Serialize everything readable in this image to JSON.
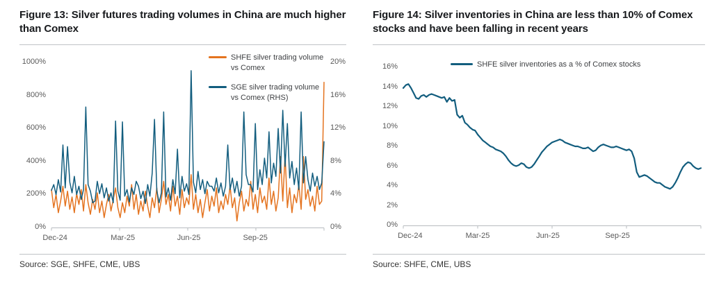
{
  "figure13": {
    "title": "Figure 13: Silver futures trading volumes in China are much higher than Comex",
    "source": "Source: SGE, SHFE, CME, UBS",
    "chart_data": {
      "type": "line",
      "x_ticks": [
        "Dec-24",
        "Mar-25",
        "Jun-25",
        "Sep-25"
      ],
      "x_range": [
        "Dec-24",
        "Nov-25"
      ],
      "grid": "off",
      "legend_position": "top-right-inside",
      "left_axis": {
        "ticks": [
          "0%",
          "200%",
          "400%",
          "600%",
          "800%",
          "1000%"
        ],
        "min": 0,
        "max": 1000
      },
      "right_axis": {
        "ticks": [
          "0%",
          "4%",
          "8%",
          "12%",
          "16%",
          "20%"
        ],
        "min": 0,
        "max": 20
      },
      "series": [
        {
          "name": "SHFE silver trading volume vs Comex",
          "axis": "left",
          "color": "#E4731F",
          "unit": "%",
          "values": [
            230,
            120,
            200,
            90,
            160,
            250,
            130,
            220,
            110,
            185,
            90,
            205,
            140,
            230,
            100,
            260,
            150,
            80,
            170,
            110,
            210,
            90,
            160,
            60,
            140,
            200,
            100,
            170,
            240,
            120,
            60,
            150,
            90,
            190,
            130,
            260,
            110,
            200,
            80,
            160,
            100,
            220,
            130,
            60,
            180,
            120,
            240,
            90,
            170,
            280,
            140,
            200,
            100,
            250,
            130,
            190,
            80,
            230,
            120,
            180,
            140,
            320,
            110,
            200,
            90,
            170,
            60,
            150,
            230,
            100,
            190,
            130,
            240,
            90,
            160,
            110,
            200,
            140,
            250,
            120,
            180,
            40,
            150,
            220,
            100,
            170,
            130,
            280,
            110,
            200,
            90,
            240,
            150,
            190,
            110,
            300,
            140,
            220,
            100,
            180,
            430,
            160,
            440,
            120,
            240,
            90,
            200,
            150,
            260,
            110,
            430,
            170,
            230,
            130,
            190,
            100,
            250,
            140,
            160,
            880
          ]
        },
        {
          "name": "SGE silver trading volume vs Comex (RHS)",
          "axis": "right",
          "color": "#125D7E",
          "unit": "%",
          "values": [
            4.5,
            5.2,
            4.0,
            5.8,
            4.3,
            10.0,
            4.8,
            9.8,
            5.5,
            4.2,
            6.2,
            4.0,
            5.0,
            3.4,
            4.6,
            14.6,
            5.2,
            4.4,
            3.0,
            3.2,
            5.6,
            4.1,
            5.3,
            3.6,
            4.8,
            3.2,
            4.2,
            3.0,
            12.9,
            4.4,
            3.3,
            12.8,
            3.8,
            4.6,
            3.1,
            4.8,
            4.0,
            5.6,
            5.0,
            3.5,
            4.4,
            2.9,
            5.2,
            3.8,
            6.6,
            13.1,
            4.5,
            3.0,
            4.2,
            14.0,
            3.7,
            4.8,
            3.3,
            5.8,
            4.1,
            9.5,
            3.6,
            6.2,
            4.4,
            5.3,
            4.0,
            19.0,
            5.5,
            4.2,
            6.8,
            4.6,
            5.8,
            4.1,
            5.6,
            5.0,
            5.0,
            4.4,
            6.0,
            4.2,
            5.4,
            3.8,
            5.0,
            10.0,
            4.6,
            6.0,
            4.2,
            5.6,
            3.8,
            5.0,
            14.0,
            6.4,
            5.2,
            5.2,
            4.3,
            12.6,
            4.6,
            7.0,
            5.2,
            8.4,
            6.0,
            11.6,
            5.4,
            7.8,
            6.2,
            12.0,
            6.6,
            14.2,
            7.4,
            12.6,
            6.0,
            8.0,
            5.2,
            7.2,
            4.6,
            14.0,
            5.4,
            8.6,
            5.8,
            4.4,
            6.6,
            5.0,
            6.2,
            4.6,
            5.4,
            10.4
          ]
        }
      ]
    }
  },
  "figure14": {
    "title": "Figure 14: Silver inventories in China are less than 10% of Comex stocks and have been falling in recent years",
    "source": "Source: SHFE, CME, UBS",
    "chart_data": {
      "type": "line",
      "x_ticks": [
        "Dec-24",
        "Mar-25",
        "Jun-25",
        "Sep-25"
      ],
      "x_range": [
        "Dec-24",
        "Nov-25"
      ],
      "grid": "off",
      "legend_position": "top-center-inside",
      "left_axis": {
        "ticks": [
          "0%",
          "2%",
          "4%",
          "6%",
          "8%",
          "10%",
          "12%",
          "14%",
          "16%"
        ],
        "min": 0,
        "max": 16
      },
      "series": [
        {
          "name": "SHFE silver inventories as a % of Comex stocks",
          "axis": "left",
          "color": "#125D7E",
          "unit": "%",
          "values": [
            13.9,
            14.2,
            14.3,
            13.9,
            13.4,
            12.9,
            12.8,
            13.1,
            13.2,
            13.0,
            13.2,
            13.3,
            13.2,
            13.1,
            13.0,
            12.9,
            13.0,
            12.5,
            12.9,
            12.6,
            12.7,
            11.2,
            10.9,
            11.1,
            10.4,
            10.2,
            9.9,
            9.7,
            9.6,
            9.2,
            8.9,
            8.6,
            8.4,
            8.2,
            8.0,
            7.9,
            7.7,
            7.6,
            7.5,
            7.3,
            7.0,
            6.6,
            6.3,
            6.1,
            6.0,
            6.1,
            6.3,
            6.2,
            5.9,
            5.8,
            5.9,
            6.2,
            6.6,
            7.0,
            7.4,
            7.7,
            8.0,
            8.2,
            8.4,
            8.5,
            8.6,
            8.7,
            8.6,
            8.4,
            8.3,
            8.2,
            8.1,
            8.0,
            8.0,
            7.9,
            7.8,
            7.8,
            7.9,
            7.7,
            7.5,
            7.6,
            7.9,
            8.1,
            8.2,
            8.1,
            8.0,
            7.9,
            7.9,
            8.0,
            7.9,
            7.8,
            7.7,
            7.6,
            7.7,
            7.5,
            6.8,
            5.4,
            4.9,
            5.0,
            5.1,
            5.0,
            4.8,
            4.6,
            4.4,
            4.3,
            4.3,
            4.1,
            3.9,
            3.8,
            3.7,
            3.9,
            4.3,
            4.8,
            5.4,
            5.9,
            6.2,
            6.4,
            6.3,
            6.0,
            5.8,
            5.7,
            5.8
          ]
        }
      ]
    }
  }
}
